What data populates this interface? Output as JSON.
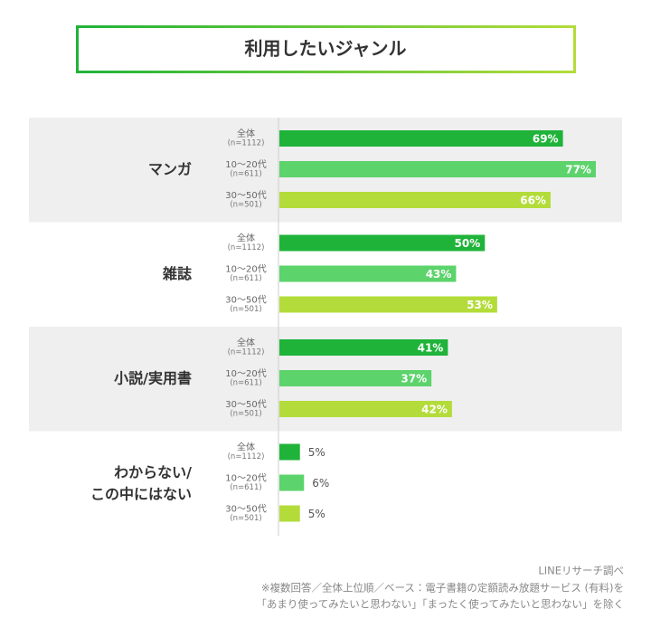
{
  "chart_data": {
    "type": "bar",
    "orientation": "horizontal",
    "title": "利用したいジャンル",
    "categories": [
      "マンガ",
      "雑誌",
      "小説/実用書",
      "わからない/\nこの中にはない"
    ],
    "series": [
      {
        "name": "全体",
        "sample": "(n=1112)",
        "color": "#1fb33a",
        "values": [
          69,
          50,
          41,
          5
        ],
        "value_labels": [
          "69%",
          "50%",
          "41%",
          "5%"
        ]
      },
      {
        "name": "10〜20代",
        "sample": "(n=611)",
        "color": "#5cd36b",
        "values": [
          77,
          43,
          37,
          6
        ],
        "value_labels": [
          "77%",
          "43%",
          "37%",
          "6%"
        ]
      },
      {
        "name": "30〜50代",
        "sample": "(n=501)",
        "color": "#b3dc3a",
        "values": [
          66,
          53,
          42,
          5
        ],
        "value_labels": [
          "66%",
          "53%",
          "42%",
          "5%"
        ]
      }
    ],
    "source": "LINEリサーチ調べ",
    "notes": [
      "※複数回答／全体上位順／ベース：電子書籍の定額読み放題サービス (有料)を",
      "「あまり使ってみたいと思わない」「まったく使ってみたいと思わない」を除く"
    ]
  }
}
